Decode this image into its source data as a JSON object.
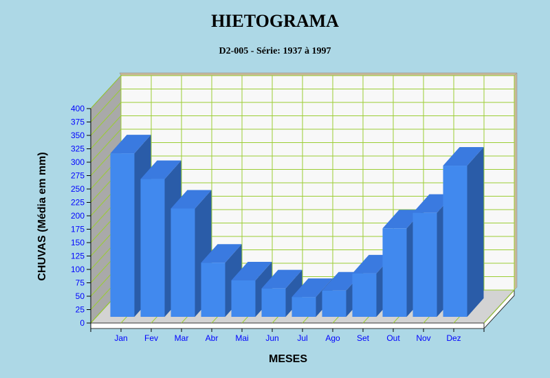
{
  "chart_data": {
    "type": "bar",
    "title": "HIETOGRAMA",
    "subtitle": "D2-005 - Série: 1937 à 1997",
    "xlabel": "MESES",
    "ylabel": "CHUVAS  (Média em mm)",
    "categories": [
      "Jan",
      "Fev",
      "Mar",
      "Abr",
      "Mai",
      "Jun",
      "Jul",
      "Ago",
      "Set",
      "Out",
      "Nov",
      "Dez"
    ],
    "series": [
      {
        "values": [
          305,
          257,
          202,
          101,
          68,
          53,
          37,
          49,
          81,
          165,
          194,
          282
        ]
      }
    ],
    "ylim": [
      0,
      400
    ],
    "yticks": [
      0,
      25,
      50,
      75,
      100,
      125,
      150,
      175,
      200,
      225,
      250,
      275,
      300,
      325,
      350,
      375,
      400
    ],
    "grid": true,
    "legend": "none",
    "colors": {
      "background": "#add8e6",
      "bar_front": "#4189ee",
      "bar_top": "#3a7ae0",
      "bar_side": "#2a5ca8",
      "plot_back": "#f8f8f8",
      "grid": "#9acd32",
      "left_wall": "#a9a9a9",
      "floor": "#d3d3d3",
      "tick_label": "#0000ff",
      "axis_title": "#000000"
    }
  }
}
